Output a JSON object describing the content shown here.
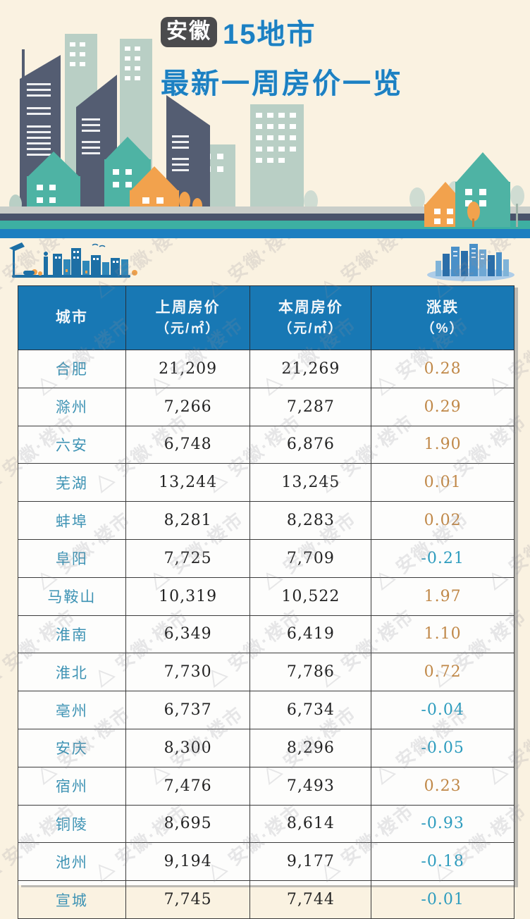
{
  "header": {
    "badge": "安徽",
    "title_rest": "15地市",
    "subtitle": "最新一周房价一览"
  },
  "watermark": {
    "triangle": "△",
    "text": "安徽·楼市"
  },
  "colors": {
    "page_background": "#faf2e1",
    "title_blue": "#1c80c2",
    "badge_bg": "#4b4b4d",
    "table_header_bg": "#1878b4",
    "city_text": "#3e93b4",
    "positive_change": "#c08848",
    "negative_change": "#2d9cbe",
    "building_slate": "#545d72",
    "building_sage": "#b9cfc5",
    "building_teal": "#4eb3a4",
    "building_orange": "#f2a24d"
  },
  "table": {
    "headers": [
      {
        "line1": "城市",
        "line2": ""
      },
      {
        "line1": "上周房价",
        "line2": "（元/㎡）"
      },
      {
        "line1": "本周房价",
        "line2": "（元/㎡）"
      },
      {
        "line1": "涨跌",
        "line2": "（%）"
      }
    ],
    "rows": [
      {
        "city": "合肥",
        "last_week": "21,209",
        "this_week": "21,269",
        "change": "0.28",
        "direction": "up"
      },
      {
        "city": "滁州",
        "last_week": "7,266",
        "this_week": "7,287",
        "change": "0.29",
        "direction": "up"
      },
      {
        "city": "六安",
        "last_week": "6,748",
        "this_week": "6,876",
        "change": "1.90",
        "direction": "up"
      },
      {
        "city": "芜湖",
        "last_week": "13,244",
        "this_week": "13,245",
        "change": "0.01",
        "direction": "up"
      },
      {
        "city": "蚌埠",
        "last_week": "8,281",
        "this_week": "8,283",
        "change": "0.02",
        "direction": "up"
      },
      {
        "city": "阜阳",
        "last_week": "7,725",
        "this_week": "7,709",
        "change": "-0.21",
        "direction": "down"
      },
      {
        "city": "马鞍山",
        "last_week": "10,319",
        "this_week": "10,522",
        "change": "1.97",
        "direction": "up"
      },
      {
        "city": "淮南",
        "last_week": "6,349",
        "this_week": "6,419",
        "change": "1.10",
        "direction": "up"
      },
      {
        "city": "淮北",
        "last_week": "7,730",
        "this_week": "7,786",
        "change": "0.72",
        "direction": "up"
      },
      {
        "city": "亳州",
        "last_week": "6,737",
        "this_week": "6,734",
        "change": "-0.04",
        "direction": "down"
      },
      {
        "city": "安庆",
        "last_week": "8,300",
        "this_week": "8,296",
        "change": "-0.05",
        "direction": "down"
      },
      {
        "city": "宿州",
        "last_week": "7,476",
        "this_week": "7,493",
        "change": "0.23",
        "direction": "up"
      },
      {
        "city": "铜陵",
        "last_week": "8,695",
        "this_week": "8,614",
        "change": "-0.93",
        "direction": "down"
      },
      {
        "city": "池州",
        "last_week": "9,194",
        "this_week": "9,177",
        "change": "-0.18",
        "direction": "down"
      },
      {
        "city": "宣城",
        "last_week": "7,745",
        "this_week": "7,744",
        "change": "-0.01",
        "direction": "down"
      }
    ]
  },
  "chart_data": {
    "type": "table",
    "title": "安徽15地市 最新一周房价一览",
    "columns": [
      "城市",
      "上周房价（元/㎡）",
      "本周房价（元/㎡）",
      "涨跌（%）"
    ],
    "rows": [
      [
        "合肥",
        21209,
        21269,
        0.28
      ],
      [
        "滁州",
        7266,
        7287,
        0.29
      ],
      [
        "六安",
        6748,
        6876,
        1.9
      ],
      [
        "芜湖",
        13244,
        13245,
        0.01
      ],
      [
        "蚌埠",
        8281,
        8283,
        0.02
      ],
      [
        "阜阳",
        7725,
        7709,
        -0.21
      ],
      [
        "马鞍山",
        10319,
        10522,
        1.97
      ],
      [
        "淮南",
        6349,
        6419,
        1.1
      ],
      [
        "淮北",
        7730,
        7786,
        0.72
      ],
      [
        "亳州",
        6737,
        6734,
        -0.04
      ],
      [
        "安庆",
        8300,
        8296,
        -0.05
      ],
      [
        "宿州",
        7476,
        7493,
        0.23
      ],
      [
        "铜陵",
        8695,
        8614,
        -0.93
      ],
      [
        "池州",
        9194,
        9177,
        -0.18
      ],
      [
        "宣城",
        7745,
        7744,
        -0.01
      ]
    ]
  }
}
